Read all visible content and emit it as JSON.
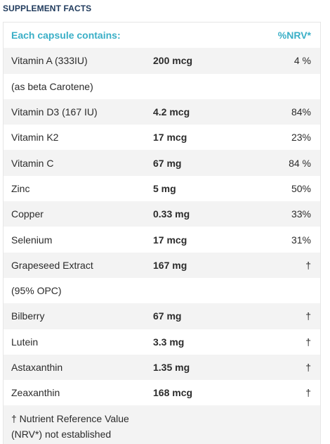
{
  "section_title": "SUPPLEMENT FACTS",
  "table": {
    "header": {
      "left": "Each capsule contains:",
      "right": "%NRV*"
    },
    "rows": [
      {
        "name": "Vitamin A (333IU)",
        "amount": "200 mcg",
        "nrv": "4 %"
      },
      {
        "name": "(as beta Carotene)",
        "amount": "",
        "nrv": ""
      },
      {
        "name": "Vitamin D3 (167 IU)",
        "amount": "4.2 mcg",
        "nrv": "84%"
      },
      {
        "name": "Vitamin K2",
        "amount": "17 mcg",
        "nrv": "23%"
      },
      {
        "name": "Vitamin C",
        "amount": "67 mg",
        "nrv": "84 %"
      },
      {
        "name": "Zinc",
        "amount": "5 mg",
        "nrv": "50%"
      },
      {
        "name": "Copper",
        "amount": "0.33 mg",
        "nrv": "33%"
      },
      {
        "name": "Selenium",
        "amount": "17 mcg",
        "nrv": "31%"
      },
      {
        "name": "Grapeseed Extract",
        "amount": "167 mg",
        "nrv": "†"
      },
      {
        "name": "(95% OPC)",
        "amount": "",
        "nrv": ""
      },
      {
        "name": "Bilberry",
        "amount": "67 mg",
        "nrv": "†"
      },
      {
        "name": "Lutein",
        "amount": "3.3 mg",
        "nrv": "†"
      },
      {
        "name": "Astaxanthin",
        "amount": "1.35 mg",
        "nrv": "†"
      },
      {
        "name": "Zeaxanthin",
        "amount": "168 mcg",
        "nrv": "†"
      }
    ],
    "footnote_line1": "† Nutrient Reference Value",
    "footnote_line2": "(NRV*) not established"
  },
  "colors": {
    "title": "#1f3a5c",
    "header_accent": "#3aafc7",
    "row_shade": "#f3f3f3"
  }
}
